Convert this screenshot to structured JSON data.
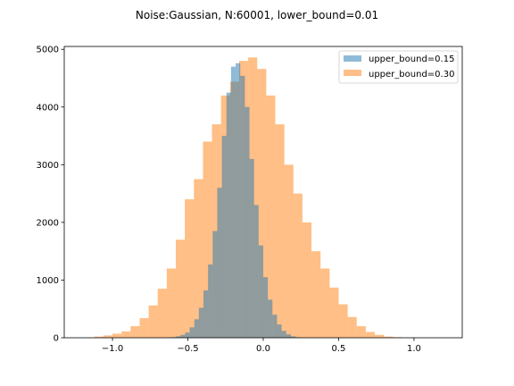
{
  "chart_data": {
    "type": "histogram",
    "title": "Noise:Gaussian, N:60001, lower_bound=0.01",
    "xlabel": "",
    "ylabel": "",
    "xlim": [
      -1.32,
      1.32
    ],
    "ylim": [
      0,
      5050
    ],
    "xticks": [
      -1.0,
      -0.5,
      0.0,
      0.5,
      1.0
    ],
    "xtick_labels": [
      "−1.0",
      "−0.5",
      "0.0",
      "0.5",
      "1.0"
    ],
    "yticks": [
      0,
      1000,
      2000,
      3000,
      4000,
      5000
    ],
    "ytick_labels": [
      "0",
      "1000",
      "2000",
      "3000",
      "4000",
      "5000"
    ],
    "legend": {
      "location": "top-right"
    },
    "series": [
      {
        "name": "upper_bound=0.15",
        "color": "#1f77b4",
        "alpha": 0.5,
        "bin_start": -0.61,
        "bin_width": 0.0305,
        "counts": [
          10,
          25,
          50,
          90,
          180,
          320,
          520,
          820,
          1270,
          1850,
          2600,
          3500,
          4250,
          4700,
          4760,
          4540,
          4000,
          3100,
          2300,
          1600,
          1050,
          660,
          400,
          230,
          120,
          60,
          25,
          10
        ]
      },
      {
        "name": "upper_bound=0.30",
        "color": "#ff7f0e",
        "alpha": 0.5,
        "bin_start": -1.12,
        "bin_width": 0.06,
        "counts": [
          20,
          40,
          70,
          110,
          200,
          340,
          560,
          850,
          1200,
          1700,
          2400,
          2750,
          3400,
          3700,
          4200,
          4440,
          4800,
          4860,
          4660,
          4200,
          3700,
          3000,
          2500,
          2000,
          1500,
          1200,
          870,
          580,
          360,
          200,
          100,
          50,
          20,
          10
        ]
      }
    ]
  }
}
